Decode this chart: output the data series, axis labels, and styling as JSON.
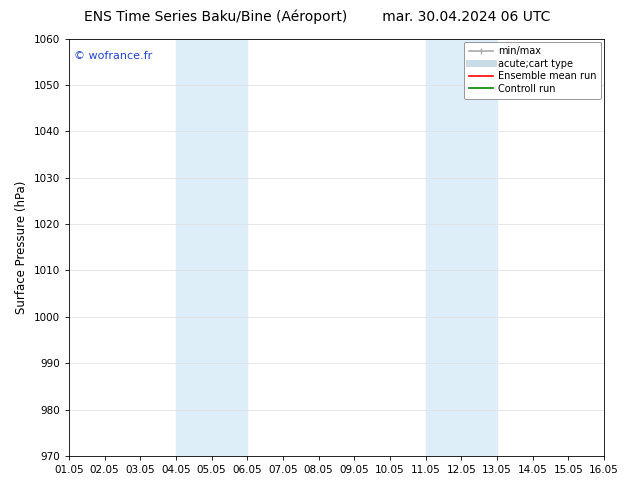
{
  "title_left": "ENS Time Series Baku/Bine (Aéroport)",
  "title_right": "mar. 30.04.2024 06 UTC",
  "ylabel": "Surface Pressure (hPa)",
  "ylim": [
    970,
    1060
  ],
  "yticks": [
    970,
    980,
    990,
    1000,
    1010,
    1020,
    1030,
    1040,
    1050,
    1060
  ],
  "xlim": [
    0,
    15
  ],
  "xtick_labels": [
    "01.05",
    "02.05",
    "03.05",
    "04.05",
    "05.05",
    "06.05",
    "07.05",
    "08.05",
    "09.05",
    "10.05",
    "11.05",
    "12.05",
    "13.05",
    "14.05",
    "15.05",
    "16.05"
  ],
  "xtick_positions": [
    0,
    1,
    2,
    3,
    4,
    5,
    6,
    7,
    8,
    9,
    10,
    11,
    12,
    13,
    14,
    15
  ],
  "shaded_bands": [
    {
      "xmin": 3.0,
      "xmax": 5.0,
      "color": "#ddeef8"
    },
    {
      "xmin": 10.0,
      "xmax": 12.0,
      "color": "#ddeef8"
    }
  ],
  "watermark_text": "© wofrance.fr",
  "watermark_color": "#2244cc",
  "bg_color": "#ffffff",
  "plot_bg_color": "#ffffff",
  "legend_entries": [
    {
      "label": "min/max",
      "color": "#aaaaaa",
      "lw": 1.2,
      "style": "min_max"
    },
    {
      "label": "acute;cart type",
      "color": "#c8dce8",
      "lw": 5,
      "style": "solid"
    },
    {
      "label": "Ensemble mean run",
      "color": "#ff0000",
      "lw": 1.2,
      "style": "solid"
    },
    {
      "label": "Controll run",
      "color": "#008800",
      "lw": 1.2,
      "style": "solid"
    }
  ],
  "grid_color": "#dddddd",
  "tick_label_fontsize": 7.5,
  "title_fontsize": 10,
  "ylabel_fontsize": 8.5,
  "legend_fontsize": 7,
  "watermark_fontsize": 8
}
